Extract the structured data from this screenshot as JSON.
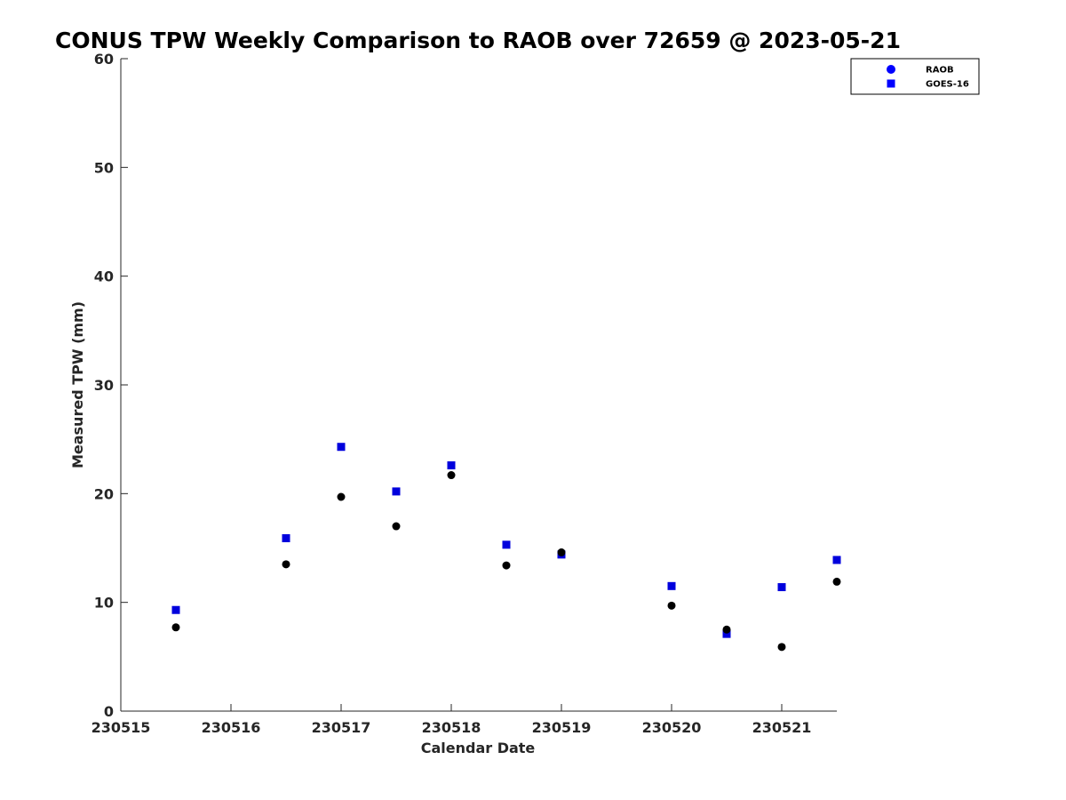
{
  "chart_data": {
    "type": "scatter",
    "title": "CONUS TPW Weekly Comparison to RAOB over 72659 @ 2023-05-21",
    "xlabel": "Calendar Date",
    "ylabel": "Measured TPW (mm)",
    "xlim": [
      230515,
      230521.5
    ],
    "ylim": [
      0,
      60
    ],
    "xticks": [
      230515,
      230516,
      230517,
      230518,
      230519,
      230520,
      230521
    ],
    "xtick_labels": [
      "230515",
      "230516",
      "230517",
      "230518",
      "230519",
      "230520",
      "230521"
    ],
    "yticks": [
      0,
      10,
      20,
      30,
      40,
      50,
      60
    ],
    "ytick_labels": [
      "0",
      "10",
      "20",
      "30",
      "40",
      "50",
      "60"
    ],
    "grid": false,
    "legend_position": "top-right",
    "x": [
      230515.5,
      230516.5,
      230517.0,
      230517.5,
      230518.0,
      230518.5,
      230519.0,
      230520.0,
      230520.5,
      230521.0,
      230521.5
    ],
    "series": [
      {
        "name": "RAOB",
        "marker": "circle",
        "legend_color": "#0000ff",
        "color": "#000000",
        "values": [
          7.7,
          13.5,
          19.7,
          17.0,
          21.7,
          13.4,
          14.6,
          9.7,
          7.5,
          5.9,
          11.9
        ]
      },
      {
        "name": "GOES-16",
        "marker": "square",
        "legend_color": "#0000ff",
        "color": "#0000dd",
        "values": [
          9.3,
          15.9,
          24.3,
          20.2,
          22.6,
          15.3,
          14.4,
          11.5,
          7.1,
          11.4,
          13.9
        ]
      }
    ]
  }
}
